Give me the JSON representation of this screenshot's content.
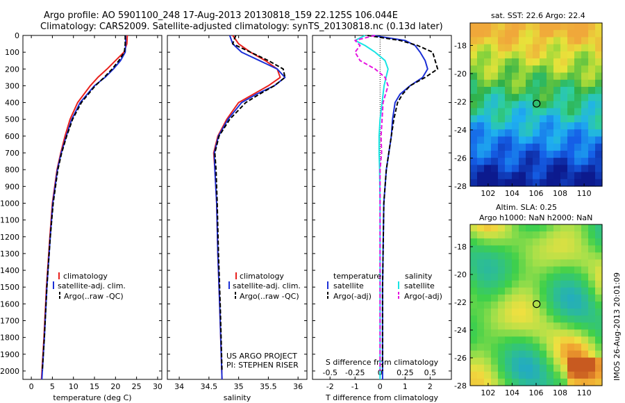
{
  "figure": {
    "title_line1": "Argo profile: AO 5901100_248 17-Aug-2013 20130818_159 22.125S 106.044E",
    "title_line2": "Climatology: CARS2009. Satellite-adjusted climatology: synTS_20130818.nc (0.13d later)",
    "side_stamp": "IMOS 26-Aug-2013 20:01:09",
    "sst_title": "sat. SST: 22.6 Argo: 22.4",
    "sla_title_1": "Altim. SLA: 0.25",
    "sla_title_2": "Argo h1000: NaN h2000: NaN",
    "project_line1": "US ARGO PROJECT",
    "project_line2": "PI: STEPHEN RISER",
    "legend": {
      "climatology": "climatology",
      "satellite_adj": "satellite-adj. clim.",
      "argo": "Argo(..raw -QC)",
      "temperature_head": "temperature",
      "salinity_head": "salinity",
      "satellite": "satellite",
      "argo_adj": "Argo(-adj)"
    },
    "colors": {
      "climatology": "#e8201c",
      "satellite": "#1b2fd6",
      "argo": "#000000",
      "salinity_satellite": "#18e4e4",
      "salinity_argo": "#e614e0"
    }
  },
  "chart_data": [
    {
      "type": "line",
      "title": "",
      "xlabel": "temperature (deg C)",
      "ylabel": "",
      "xlim": [
        -2,
        31
      ],
      "ylim": [
        2050,
        0
      ],
      "xticks": [
        0,
        5,
        10,
        15,
        20,
        25,
        30
      ],
      "yticks": [
        0,
        100,
        200,
        300,
        400,
        500,
        600,
        700,
        800,
        900,
        1000,
        1100,
        1200,
        1300,
        1400,
        1500,
        1600,
        1700,
        1800,
        1900,
        2000
      ],
      "series": [
        {
          "name": "climatology",
          "color": "#e8201c",
          "dash": "",
          "depth": [
            0,
            50,
            100,
            150,
            200,
            250,
            300,
            400,
            500,
            600,
            700,
            800,
            1000,
            1200,
            1500,
            1800,
            2050
          ],
          "values": [
            22.8,
            22.7,
            22.0,
            20.0,
            18.0,
            15.8,
            14.0,
            11.0,
            9.2,
            8.0,
            7.0,
            6.1,
            5.0,
            4.4,
            3.6,
            3.0,
            2.4
          ]
        },
        {
          "name": "satellite-adj. clim.",
          "color": "#1b2fd6",
          "dash": "",
          "depth": [
            0,
            50,
            100,
            150,
            200,
            250,
            300,
            400,
            500,
            600,
            700,
            800,
            1000,
            1200,
            1500,
            1800,
            2050
          ],
          "values": [
            22.4,
            22.4,
            22.3,
            21.2,
            19.5,
            17.5,
            15.0,
            11.6,
            9.6,
            8.3,
            7.1,
            6.2,
            5.1,
            4.5,
            3.7,
            3.1,
            2.5
          ]
        },
        {
          "name": "Argo(..raw -QC)",
          "color": "#000000",
          "dash": "6,3",
          "depth": [
            0,
            50,
            100,
            150,
            200,
            250,
            300,
            400,
            500,
            600,
            700,
            800,
            1000,
            1200,
            1500,
            1800,
            2000
          ],
          "values": [
            22.3,
            22.3,
            22.1,
            20.8,
            19.2,
            17.3,
            15.2,
            11.9,
            9.8,
            8.4,
            7.2,
            6.3,
            5.2,
            4.5,
            3.7,
            3.1,
            2.6
          ]
        }
      ]
    },
    {
      "type": "line",
      "title": "",
      "xlabel": "salinity",
      "ylabel": "",
      "xlim": [
        33.8,
        36.15
      ],
      "ylim": [
        2050,
        0
      ],
      "xticks": [
        34,
        34.5,
        35,
        35.5,
        36
      ],
      "series": [
        {
          "name": "climatology",
          "color": "#e8201c",
          "dash": "",
          "depth": [
            0,
            50,
            100,
            150,
            200,
            250,
            300,
            350,
            400,
            500,
            600,
            700,
            800,
            1000,
            1300,
            1600,
            2050
          ],
          "values": [
            34.9,
            35.0,
            35.2,
            35.45,
            35.65,
            35.7,
            35.5,
            35.25,
            35.0,
            34.8,
            34.65,
            34.58,
            34.6,
            34.63,
            34.65,
            34.68,
            34.72
          ]
        },
        {
          "name": "satellite-adj. clim.",
          "color": "#1b2fd6",
          "dash": "",
          "depth": [
            0,
            50,
            100,
            150,
            200,
            250,
            300,
            350,
            400,
            500,
            600,
            700,
            800,
            1000,
            1300,
            1600,
            2050
          ],
          "values": [
            34.85,
            34.9,
            35.05,
            35.35,
            35.65,
            35.78,
            35.6,
            35.3,
            35.05,
            34.82,
            34.66,
            34.59,
            34.6,
            34.63,
            34.65,
            34.68,
            34.72
          ]
        },
        {
          "name": "Argo(..raw -QC)",
          "color": "#000000",
          "dash": "6,3",
          "depth": [
            0,
            50,
            100,
            150,
            200,
            250,
            300,
            350,
            400,
            500,
            600,
            700,
            800,
            1000,
            1300,
            1600,
            2000
          ],
          "values": [
            34.95,
            34.9,
            35.2,
            35.5,
            35.75,
            35.78,
            35.6,
            35.35,
            35.12,
            34.85,
            34.67,
            34.6,
            34.62,
            34.64,
            34.66,
            34.69,
            34.72
          ]
        }
      ],
      "annotations": [
        "US ARGO PROJECT",
        "PI: STEPHEN RISER"
      ]
    },
    {
      "type": "line",
      "title": "",
      "xlabel": "T difference from climatology",
      "x2label": "S difference from climatology",
      "ylabel": "",
      "xlim": [
        -2.7,
        2.85
      ],
      "x2lim": [
        -0.675,
        0.7125
      ],
      "ylim": [
        2050,
        0
      ],
      "xticks": [
        -2,
        -1,
        0,
        1,
        2
      ],
      "x2ticks": [
        -0.5,
        -0.25,
        0,
        0.25,
        0.5
      ],
      "x2ticklabels": [
        "-0.5",
        "-0.25",
        "0",
        "0.25",
        "0.5"
      ],
      "series": [
        {
          "name": "temperature satellite",
          "color": "#1b2fd6",
          "dash": "",
          "axis": "T",
          "depth": [
            0,
            30,
            60,
            100,
            150,
            200,
            250,
            300,
            350,
            400,
            500,
            600,
            700,
            800,
            1000,
            1500,
            2050
          ],
          "values": [
            -0.3,
            1.0,
            1.4,
            1.6,
            1.8,
            1.9,
            1.7,
            1.2,
            0.8,
            0.6,
            0.5,
            0.45,
            0.35,
            0.25,
            0.15,
            0.1,
            0.1
          ]
        },
        {
          "name": "temperature Argo(-adj)",
          "color": "#000000",
          "dash": "6,3",
          "axis": "T",
          "depth": [
            0,
            30,
            60,
            100,
            150,
            200,
            250,
            300,
            350,
            400,
            500,
            600,
            700,
            800,
            1000,
            1500,
            2000
          ],
          "values": [
            -0.5,
            0.8,
            1.5,
            2.1,
            2.2,
            2.3,
            1.8,
            1.2,
            0.9,
            0.7,
            0.55,
            0.45,
            0.35,
            0.25,
            0.15,
            0.1,
            0.1
          ]
        },
        {
          "name": "salinity satellite",
          "color": "#18e4e4",
          "dash": "",
          "axis": "S",
          "depth": [
            0,
            30,
            60,
            100,
            150,
            200,
            250,
            300,
            400,
            500,
            600,
            700,
            800,
            1000,
            1500,
            2050
          ],
          "values": [
            -0.15,
            -0.25,
            -0.15,
            -0.05,
            0.05,
            0.08,
            0.06,
            0.04,
            0.02,
            0.0,
            -0.01,
            -0.01,
            -0.005,
            0.0,
            0.0,
            0.0
          ]
        },
        {
          "name": "salinity Argo(-adj)",
          "color": "#e614e0",
          "dash": "6,3",
          "axis": "S",
          "depth": [
            0,
            30,
            60,
            100,
            150,
            200,
            250,
            300,
            400,
            500,
            600,
            700,
            800,
            1000,
            1500,
            2000
          ],
          "values": [
            -0.05,
            -0.25,
            -0.2,
            -0.25,
            -0.2,
            -0.05,
            0.05,
            0.08,
            0.03,
            0.02,
            0.01,
            0.015,
            0.0,
            0.0,
            0.0,
            0.0
          ]
        }
      ],
      "legend": [
        "temperature",
        "salinity",
        "satellite",
        "satellite",
        "Argo(-adj)",
        "Argo(-adj)"
      ]
    },
    {
      "type": "heatmap",
      "title": "sat. SST: 22.6 Argo: 22.4",
      "xlabel": "",
      "ylabel": "",
      "xlim": [
        100.5,
        111.5
      ],
      "ylim": [
        -28,
        -16.4
      ],
      "xticks": [
        102,
        104,
        106,
        108,
        110
      ],
      "yticks": [
        -18,
        -20,
        -22,
        -24,
        -26,
        -28
      ],
      "marker": {
        "lon": 106.04,
        "lat": -22.13
      }
    },
    {
      "type": "heatmap",
      "title": "Altim. SLA: 0.25",
      "subtitle": "Argo h1000: NaN h2000: NaN",
      "xlabel": "",
      "ylabel": "",
      "xlim": [
        100.5,
        111.5
      ],
      "ylim": [
        -28,
        -16.4
      ],
      "xticks": [
        102,
        104,
        106,
        108,
        110
      ],
      "yticks": [
        -18,
        -20,
        -22,
        -24,
        -26,
        -28
      ],
      "marker": {
        "lon": 106.04,
        "lat": -22.13
      }
    }
  ]
}
